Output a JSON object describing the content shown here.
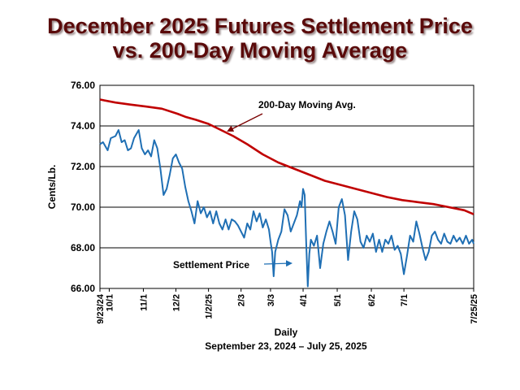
{
  "title_line1": "December 2025 Futures Settlement Price",
  "title_line2": "vs. 200-Day Moving Average",
  "chart_data": {
    "type": "line",
    "ylabel": "Cents/Lb.",
    "xlabel": "Daily",
    "subtitle": "September 23, 2024 – July 25, 2025",
    "ylim": [
      66.0,
      76.0
    ],
    "yticks": [
      "76.00",
      "74.00",
      "72.00",
      "70.00",
      "68.00",
      "66.00"
    ],
    "grid": "horizontal",
    "x_tick_labels": [
      "9/23/24",
      "10/1",
      "11/1",
      "12/2",
      "1/2/25",
      "2/3",
      "3/3",
      "4/1",
      "5/1",
      "6/2",
      "7/1",
      "7/25/25"
    ],
    "annotations": {
      "moving_avg": "200-Day Moving Avg.",
      "settlement": "Settlement Price"
    },
    "colors": {
      "moving_avg": "#c00000",
      "settlement": "#1f6fb4",
      "title": "#5a0a0a"
    },
    "series": [
      {
        "key": "moving_avg",
        "points": [
          [
            0,
            75.3
          ],
          [
            10,
            75.15
          ],
          [
            20,
            75.05
          ],
          [
            30,
            74.95
          ],
          [
            40,
            74.85
          ],
          [
            50,
            74.6
          ],
          [
            55,
            74.45
          ],
          [
            62,
            74.3
          ],
          [
            70,
            74.1
          ],
          [
            78,
            73.8
          ],
          [
            86,
            73.5
          ],
          [
            95,
            73.1
          ],
          [
            105,
            72.6
          ],
          [
            115,
            72.2
          ],
          [
            125,
            71.9
          ],
          [
            135,
            71.6
          ],
          [
            145,
            71.3
          ],
          [
            155,
            71.1
          ],
          [
            165,
            70.9
          ],
          [
            175,
            70.7
          ],
          [
            185,
            70.5
          ],
          [
            195,
            70.35
          ],
          [
            205,
            70.25
          ],
          [
            215,
            70.15
          ],
          [
            225,
            70.0
          ],
          [
            235,
            69.85
          ],
          [
            241,
            69.65
          ]
        ]
      },
      {
        "key": "settlement",
        "points": [
          [
            0,
            73.1
          ],
          [
            2,
            73.2
          ],
          [
            5,
            72.8
          ],
          [
            7,
            73.4
          ],
          [
            10,
            73.5
          ],
          [
            12,
            73.8
          ],
          [
            14,
            73.2
          ],
          [
            16,
            73.3
          ],
          [
            18,
            72.8
          ],
          [
            20,
            72.9
          ],
          [
            22,
            73.4
          ],
          [
            25,
            73.8
          ],
          [
            27,
            72.9
          ],
          [
            29,
            72.6
          ],
          [
            31,
            72.8
          ],
          [
            33,
            72.5
          ],
          [
            35,
            73.3
          ],
          [
            37,
            72.9
          ],
          [
            39,
            71.9
          ],
          [
            41,
            70.6
          ],
          [
            43,
            70.9
          ],
          [
            45,
            71.6
          ],
          [
            47,
            72.4
          ],
          [
            49,
            72.6
          ],
          [
            51,
            72.2
          ],
          [
            53,
            71.9
          ],
          [
            55,
            71.0
          ],
          [
            57,
            70.3
          ],
          [
            59,
            69.8
          ],
          [
            61,
            69.2
          ],
          [
            63,
            70.3
          ],
          [
            65,
            69.7
          ],
          [
            67,
            70.0
          ],
          [
            69,
            69.5
          ],
          [
            71,
            69.8
          ],
          [
            73,
            69.2
          ],
          [
            75,
            69.8
          ],
          [
            77,
            69.2
          ],
          [
            79,
            68.9
          ],
          [
            81,
            69.4
          ],
          [
            83,
            68.9
          ],
          [
            85,
            69.4
          ],
          [
            87,
            69.3
          ],
          [
            89,
            69.1
          ],
          [
            91,
            68.8
          ],
          [
            93,
            68.5
          ],
          [
            95,
            69.2
          ],
          [
            97,
            68.9
          ],
          [
            99,
            69.8
          ],
          [
            101,
            69.3
          ],
          [
            103,
            69.7
          ],
          [
            105,
            69.0
          ],
          [
            107,
            69.4
          ],
          [
            109,
            68.9
          ],
          [
            110,
            68.3
          ],
          [
            111,
            67.8
          ],
          [
            112,
            66.6
          ],
          [
            113,
            67.8
          ],
          [
            115,
            68.4
          ],
          [
            117,
            68.8
          ],
          [
            119,
            69.9
          ],
          [
            121,
            69.6
          ],
          [
            123,
            68.8
          ],
          [
            125,
            69.2
          ],
          [
            127,
            69.6
          ],
          [
            129,
            70.3
          ],
          [
            130,
            70.0
          ],
          [
            131,
            70.9
          ],
          [
            132,
            70.6
          ],
          [
            133,
            68.2
          ],
          [
            134,
            66.1
          ],
          [
            135,
            67.7
          ],
          [
            136,
            68.4
          ],
          [
            138,
            68.1
          ],
          [
            140,
            68.6
          ],
          [
            142,
            67.0
          ],
          [
            144,
            68.2
          ],
          [
            146,
            68.8
          ],
          [
            148,
            69.3
          ],
          [
            150,
            68.8
          ],
          [
            152,
            68.2
          ],
          [
            154,
            70.0
          ],
          [
            156,
            70.4
          ],
          [
            158,
            69.6
          ],
          [
            160,
            67.4
          ],
          [
            162,
            68.8
          ],
          [
            164,
            69.8
          ],
          [
            166,
            69.4
          ],
          [
            168,
            68.3
          ],
          [
            170,
            68.0
          ],
          [
            172,
            68.6
          ],
          [
            174,
            68.3
          ],
          [
            176,
            68.7
          ],
          [
            178,
            67.8
          ],
          [
            180,
            68.4
          ],
          [
            182,
            67.8
          ],
          [
            184,
            68.4
          ],
          [
            186,
            68.2
          ],
          [
            188,
            68.6
          ],
          [
            190,
            67.9
          ],
          [
            192,
            68.1
          ],
          [
            194,
            67.7
          ],
          [
            196,
            66.7
          ],
          [
            198,
            67.6
          ],
          [
            200,
            68.6
          ],
          [
            202,
            68.3
          ],
          [
            204,
            69.3
          ],
          [
            206,
            68.7
          ],
          [
            208,
            68.0
          ],
          [
            210,
            67.4
          ],
          [
            212,
            67.8
          ],
          [
            214,
            68.6
          ],
          [
            216,
            68.8
          ],
          [
            218,
            68.4
          ],
          [
            220,
            68.2
          ],
          [
            222,
            68.7
          ],
          [
            224,
            68.3
          ],
          [
            226,
            68.2
          ],
          [
            228,
            68.6
          ],
          [
            230,
            68.3
          ],
          [
            232,
            68.5
          ],
          [
            234,
            68.2
          ],
          [
            236,
            68.6
          ],
          [
            238,
            68.2
          ],
          [
            240,
            68.4
          ],
          [
            241,
            68.2
          ]
        ]
      }
    ]
  }
}
